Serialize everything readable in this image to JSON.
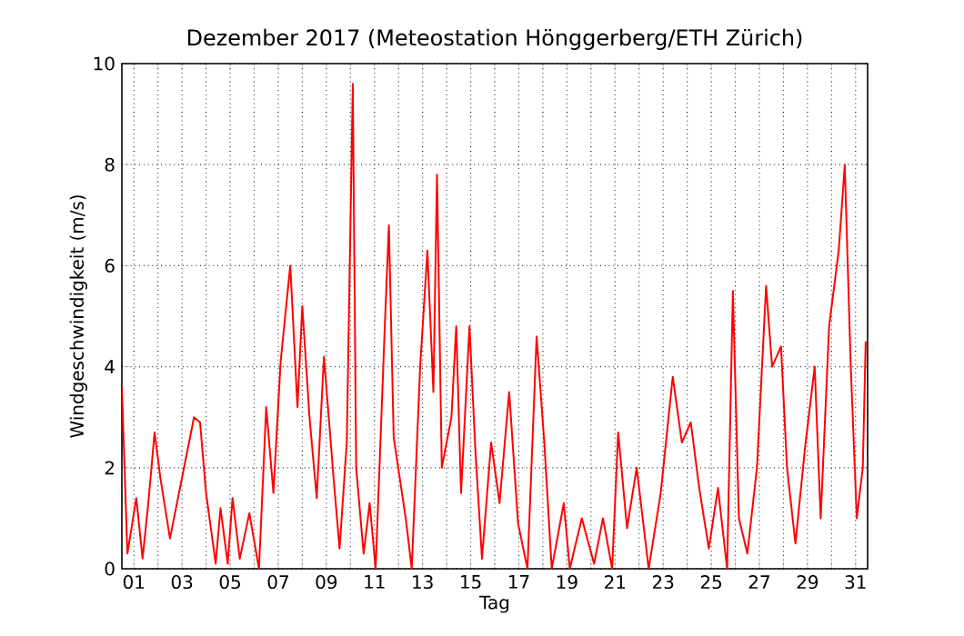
{
  "chart_data": {
    "type": "line",
    "title": "Dezember 2017  (Meteostation Hönggerberg/ETH Zürich)",
    "xlabel": "Tag",
    "ylabel": "Windgeschwindigkeit (m/s)",
    "xlim": [
      0.5,
      31.5
    ],
    "ylim": [
      0,
      10
    ],
    "xticks": [
      {
        "value": 1,
        "label": "01"
      },
      {
        "value": 2,
        "label": null
      },
      {
        "value": 3,
        "label": "03"
      },
      {
        "value": 4,
        "label": null
      },
      {
        "value": 5,
        "label": "05"
      },
      {
        "value": 6,
        "label": null
      },
      {
        "value": 7,
        "label": "07"
      },
      {
        "value": 8,
        "label": null
      },
      {
        "value": 9,
        "label": "09"
      },
      {
        "value": 10,
        "label": null
      },
      {
        "value": 11,
        "label": "11"
      },
      {
        "value": 12,
        "label": null
      },
      {
        "value": 13,
        "label": "13"
      },
      {
        "value": 14,
        "label": null
      },
      {
        "value": 15,
        "label": "15"
      },
      {
        "value": 16,
        "label": null
      },
      {
        "value": 17,
        "label": "17"
      },
      {
        "value": 18,
        "label": null
      },
      {
        "value": 19,
        "label": "19"
      },
      {
        "value": 20,
        "label": null
      },
      {
        "value": 21,
        "label": "21"
      },
      {
        "value": 22,
        "label": null
      },
      {
        "value": 23,
        "label": "23"
      },
      {
        "value": 24,
        "label": null
      },
      {
        "value": 25,
        "label": "25"
      },
      {
        "value": 26,
        "label": null
      },
      {
        "value": 27,
        "label": "27"
      },
      {
        "value": 28,
        "label": null
      },
      {
        "value": 29,
        "label": "29"
      },
      {
        "value": 30,
        "label": null
      },
      {
        "value": 31,
        "label": "31"
      }
    ],
    "yticks": [
      0,
      2,
      4,
      6,
      8,
      10
    ],
    "grid": true,
    "line_style": "solid",
    "series": [
      {
        "color": "#ff0000",
        "x": [
          0.5,
          0.73,
          1.1,
          1.36,
          1.6,
          1.86,
          2.1,
          2.5,
          3.0,
          3.5,
          3.75,
          4.0,
          4.4,
          4.6,
          4.9,
          5.1,
          5.4,
          5.8,
          6.2,
          6.5,
          6.8,
          7.1,
          7.5,
          7.8,
          8.0,
          8.3,
          8.6,
          8.9,
          9.3,
          9.55,
          9.85,
          10.1,
          10.24,
          10.55,
          10.8,
          11.05,
          11.43,
          11.6,
          11.8,
          12.3,
          12.55,
          12.9,
          13.2,
          13.45,
          13.6,
          13.8,
          14.2,
          14.4,
          14.6,
          14.95,
          15.2,
          15.47,
          15.85,
          16.2,
          16.6,
          16.97,
          17.36,
          17.74,
          18.06,
          18.37,
          18.87,
          19.12,
          19.62,
          20.13,
          20.5,
          20.88,
          21.13,
          21.5,
          21.9,
          22.4,
          22.9,
          23.4,
          23.78,
          24.15,
          24.5,
          24.9,
          25.28,
          25.66,
          25.9,
          26.15,
          26.5,
          26.9,
          27.28,
          27.53,
          27.9,
          28.15,
          28.5,
          28.9,
          29.3,
          29.55,
          29.9,
          30.3,
          30.55,
          30.8,
          31.05,
          31.3,
          31.42
        ],
        "values": [
          3.6,
          0.3,
          1.4,
          0.2,
          1.3,
          2.7,
          1.8,
          0.6,
          1.8,
          3.0,
          2.9,
          1.5,
          0.1,
          1.2,
          0.1,
          1.4,
          0.2,
          1.1,
          0.0,
          3.2,
          1.5,
          4.1,
          6.0,
          3.2,
          5.2,
          3.0,
          1.4,
          4.2,
          1.8,
          0.4,
          2.5,
          9.6,
          2.0,
          0.3,
          1.3,
          0.0,
          4.8,
          6.8,
          2.6,
          1.0,
          0.0,
          4.0,
          6.3,
          3.5,
          7.8,
          2.0,
          3.0,
          4.8,
          1.5,
          4.8,
          2.3,
          0.2,
          2.5,
          1.3,
          3.5,
          0.9,
          0.0,
          4.6,
          2.5,
          0.0,
          1.3,
          0.0,
          1.0,
          0.1,
          1.0,
          0.0,
          2.7,
          0.8,
          2.0,
          0.0,
          1.5,
          3.8,
          2.5,
          2.9,
          1.6,
          0.4,
          1.6,
          0.0,
          5.5,
          1.0,
          0.3,
          2.0,
          5.6,
          4.0,
          4.4,
          2.0,
          0.5,
          2.4,
          4.0,
          1.0,
          4.8,
          6.3,
          8.0,
          4.0,
          1.0,
          2.0,
          4.5
        ]
      }
    ]
  }
}
